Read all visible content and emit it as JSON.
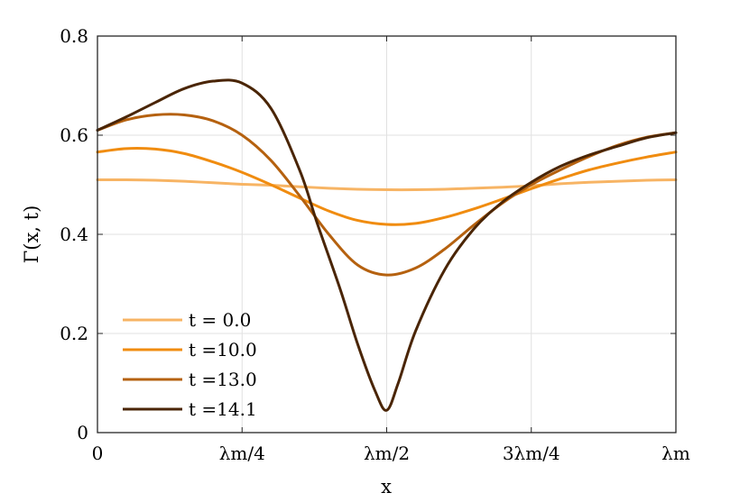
{
  "chart_data": {
    "type": "line",
    "xlabel": "x",
    "ylabel": "Γ(x, t)",
    "xlim": [
      0,
      1
    ],
    "ylim": [
      0,
      0.8
    ],
    "x_unit": "λm (x in fractions of λm)",
    "grid": true,
    "legend_position": "bottom-left",
    "xticks": [
      {
        "value": 0,
        "label": "0"
      },
      {
        "value": 0.25,
        "label": "λm/4"
      },
      {
        "value": 0.5,
        "label": "λm/2"
      },
      {
        "value": 0.75,
        "label": "3λm/4"
      },
      {
        "value": 1,
        "label": "λm"
      }
    ],
    "yticks": [
      {
        "value": 0,
        "label": "0"
      },
      {
        "value": 0.2,
        "label": "0.2"
      },
      {
        "value": 0.4,
        "label": "0.4"
      },
      {
        "value": 0.6,
        "label": "0.6"
      },
      {
        "value": 0.8,
        "label": "0.8"
      }
    ],
    "series": [
      {
        "name": "t = 0.0",
        "color": "#f7b464",
        "x": [
          0,
          0.05,
          0.1,
          0.15,
          0.2,
          0.25,
          0.3,
          0.35,
          0.4,
          0.45,
          0.5,
          0.55,
          0.6,
          0.65,
          0.7,
          0.75,
          0.8,
          0.85,
          0.9,
          0.95,
          1
        ],
        "y": [
          0.51,
          0.51,
          0.509,
          0.507,
          0.504,
          0.501,
          0.499,
          0.496,
          0.493,
          0.491,
          0.49,
          0.49,
          0.491,
          0.493,
          0.495,
          0.498,
          0.502,
          0.505,
          0.507,
          0.509,
          0.51
        ]
      },
      {
        "name": "t =10.0",
        "color": "#f08c10",
        "x": [
          0,
          0.05,
          0.1,
          0.15,
          0.2,
          0.25,
          0.3,
          0.35,
          0.4,
          0.45,
          0.5,
          0.55,
          0.6,
          0.65,
          0.7,
          0.75,
          0.8,
          0.85,
          0.9,
          0.95,
          1
        ],
        "y": [
          0.566,
          0.573,
          0.572,
          0.563,
          0.546,
          0.525,
          0.5,
          0.473,
          0.447,
          0.428,
          0.42,
          0.422,
          0.434,
          0.451,
          0.471,
          0.492,
          0.512,
          0.53,
          0.544,
          0.556,
          0.566
        ]
      },
      {
        "name": "t =13.0",
        "color": "#b5610f",
        "x": [
          0,
          0.05,
          0.1,
          0.15,
          0.2,
          0.25,
          0.3,
          0.35,
          0.4,
          0.45,
          0.5,
          0.55,
          0.6,
          0.65,
          0.7,
          0.75,
          0.8,
          0.85,
          0.9,
          0.95,
          1
        ],
        "y": [
          0.61,
          0.631,
          0.641,
          0.641,
          0.629,
          0.6,
          0.549,
          0.477,
          0.4,
          0.338,
          0.318,
          0.332,
          0.37,
          0.418,
          0.463,
          0.5,
          0.53,
          0.557,
          0.58,
          0.596,
          0.605
        ]
      },
      {
        "name": "t =14.1",
        "color": "#4a2505",
        "x": [
          0,
          0.05,
          0.1,
          0.15,
          0.2,
          0.25,
          0.3,
          0.35,
          0.38,
          0.42,
          0.45,
          0.48,
          0.5,
          0.52,
          0.55,
          0.6,
          0.65,
          0.7,
          0.75,
          0.8,
          0.85,
          0.9,
          0.95,
          1
        ],
        "y": [
          0.61,
          0.637,
          0.666,
          0.694,
          0.709,
          0.705,
          0.654,
          0.528,
          0.422,
          0.288,
          0.178,
          0.084,
          0.045,
          0.1,
          0.205,
          0.328,
          0.41,
          0.465,
          0.505,
          0.537,
          0.56,
          0.578,
          0.595,
          0.605
        ]
      }
    ]
  }
}
